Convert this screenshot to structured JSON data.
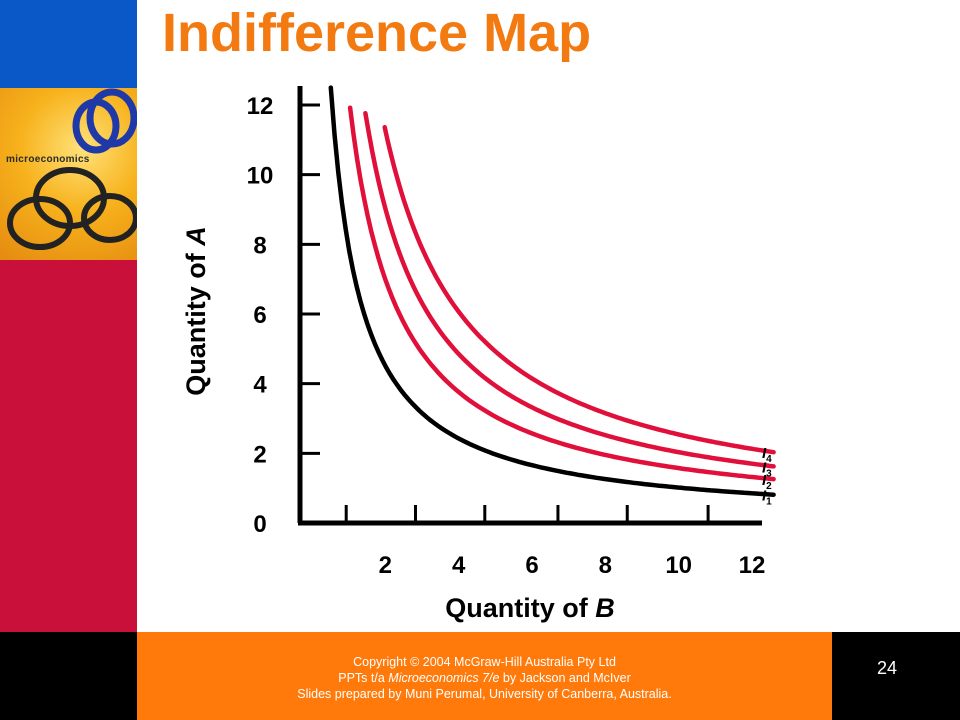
{
  "slide": {
    "title": "Indifference Map",
    "page_number": "24",
    "cover_text": "microeconomics",
    "footer": {
      "line1": "Copyright © 2004 McGraw-Hill Australia Pty Ltd",
      "line2_pre": "PPTs t/a ",
      "line2_italic": "Microeconomics 7/e",
      "line2_post": " by Jackson and McIver",
      "line3": "Slides prepared by Muni Perumal, University of Canberra, Australia."
    }
  },
  "colors": {
    "title": "#f27a10",
    "curve_base": "#000000",
    "curve_higher": "#e0103a",
    "footer_bg": "#ff7a0a"
  },
  "chart_data": {
    "type": "line",
    "xlabel_text": "Quantity of ",
    "xlabel_var": "B",
    "ylabel_text": "Quantity of ",
    "ylabel_var": "A",
    "xlim": [
      0,
      12
    ],
    "ylim": [
      0,
      12
    ],
    "x_tick_labels": [
      "2",
      "4",
      "6",
      "8",
      "10",
      "12"
    ],
    "y_tick_labels": [
      "0",
      "2",
      "4",
      "6",
      "8",
      "10",
      "12"
    ],
    "grid": false,
    "series": [
      {
        "name": "I",
        "sub": "1",
        "color": "#000000",
        "k": 10,
        "x": [
          0.8,
          1,
          1.5,
          2,
          3,
          4,
          5,
          6,
          7,
          8,
          9,
          10,
          11,
          12.3
        ],
        "y": [
          12.7,
          10.0,
          6.67,
          5.0,
          3.33,
          2.5,
          2.0,
          1.67,
          1.43,
          1.25,
          1.11,
          1.0,
          0.91,
          0.81
        ]
      },
      {
        "name": "I",
        "sub": "2",
        "color": "#e0103a",
        "k": 15.5,
        "x": [
          1.3,
          1.5,
          2,
          3,
          4,
          5,
          6,
          7,
          8,
          9,
          10,
          11,
          12.3
        ],
        "y": [
          12.3,
          10.33,
          7.75,
          5.17,
          3.88,
          3.1,
          2.58,
          2.21,
          1.94,
          1.72,
          1.55,
          1.41,
          1.26
        ]
      },
      {
        "name": "I",
        "sub": "3",
        "color": "#e0103a",
        "k": 20,
        "x": [
          1.7,
          2,
          3,
          4,
          5,
          6,
          7,
          8,
          9,
          10,
          11,
          12.3
        ],
        "y": [
          12.3,
          10.0,
          6.67,
          5.0,
          4.0,
          3.33,
          2.86,
          2.5,
          2.22,
          2.0,
          1.82,
          1.63
        ]
      },
      {
        "name": "I",
        "sub": "4",
        "color": "#e0103a",
        "k": 25,
        "x": [
          2.2,
          2.5,
          3,
          4,
          5,
          6,
          7,
          8,
          9,
          10,
          11,
          12.3
        ],
        "y": [
          12.0,
          10.0,
          8.33,
          6.25,
          5.0,
          4.17,
          3.57,
          3.13,
          2.78,
          2.5,
          2.27,
          2.03
        ]
      }
    ]
  }
}
